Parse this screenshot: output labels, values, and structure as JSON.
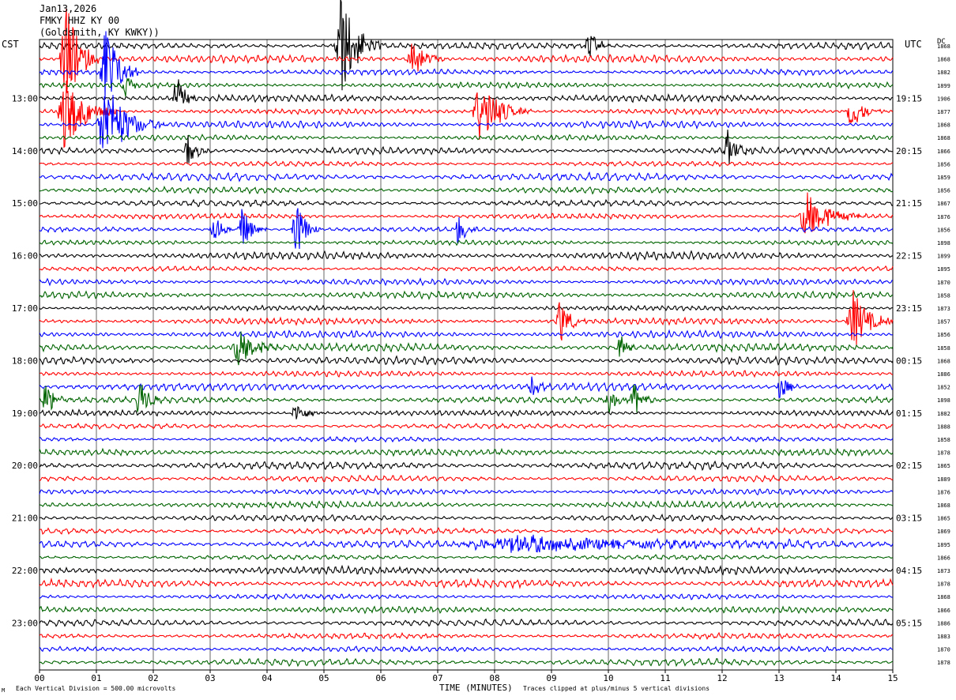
{
  "header": {
    "date": "Jan13,2026",
    "station": "FMKY HHZ KY 00",
    "location": "(Goldsmith, KY KWKY))"
  },
  "axes": {
    "left_title": "CST",
    "right_title": "UTC",
    "dc_title": "DC",
    "x_title": "TIME (MINUTES)"
  },
  "footer": {
    "scale_note": "Each Vertical Division = 500.00 microvolts",
    "clip_note": "Traces clipped at plus/minus 5 vertical divisions",
    "corner_mark": "M"
  },
  "colors": {
    "trace_cycle": [
      "#000000",
      "#ff0000",
      "#0000ff",
      "#006400"
    ],
    "grid": "#000000",
    "background": "#ffffff"
  },
  "chart_data": {
    "type": "helicorder",
    "title": "FMKY HHZ KY 00",
    "xlabel": "TIME (MINUTES)",
    "xlim": [
      0,
      15
    ],
    "x_ticks": [
      "00",
      "01",
      "02",
      "03",
      "04",
      "05",
      "06",
      "07",
      "08",
      "09",
      "10",
      "11",
      "12",
      "13",
      "14",
      "15"
    ],
    "left_hour_labels": [
      "13:00",
      "14:00",
      "15:00",
      "16:00",
      "17:00",
      "18:00",
      "19:00",
      "20:00",
      "21:00",
      "22:00",
      "23:00"
    ],
    "right_hour_labels": [
      "19:15",
      "20:15",
      "21:15",
      "22:15",
      "23:15",
      "00:15",
      "01:15",
      "02:15",
      "03:15",
      "04:15",
      "05:15"
    ],
    "minutes_per_line": 15,
    "line_count": 48,
    "grid": true,
    "dc_offsets": [
      "1868",
      "1868",
      "1882",
      "1899",
      "1906",
      "1877",
      "1868",
      "1868",
      "1866",
      "1856",
      "1859",
      "1856",
      "1867",
      "1876",
      "1856",
      "1898",
      "1899",
      "1895",
      "1870",
      "1858",
      "1873",
      "1857",
      "1856",
      "1858",
      "1868",
      "1886",
      "1852",
      "1898",
      "1882",
      "1888",
      "1858",
      "1878",
      "1865",
      "1889",
      "1876",
      "1868",
      "1865",
      "1869",
      "1895",
      "1866",
      "1873",
      "1878",
      "1868",
      "1866",
      "1886",
      "1883",
      "1870",
      "1878"
    ],
    "events": [
      {
        "line": 0,
        "minute": 5.3,
        "amplitude": 7.5,
        "width": 0.25
      },
      {
        "line": 0,
        "minute": 9.65,
        "amplitude": 2,
        "width": 0.15
      },
      {
        "line": 1,
        "minute": 0.45,
        "amplitude": 9,
        "width": 0.2
      },
      {
        "line": 1,
        "minute": 6.55,
        "amplitude": 3,
        "width": 0.2
      },
      {
        "line": 2,
        "minute": 1.15,
        "amplitude": 8,
        "width": 0.2
      },
      {
        "line": 3,
        "minute": 1.5,
        "amplitude": 2.5,
        "width": 0.1
      },
      {
        "line": 4,
        "minute": 2.4,
        "amplitude": 4,
        "width": 0.12
      },
      {
        "line": 5,
        "minute": 0.45,
        "amplitude": 6,
        "width": 0.3
      },
      {
        "line": 5,
        "minute": 7.75,
        "amplitude": 5,
        "width": 0.3
      },
      {
        "line": 5,
        "minute": 14.25,
        "amplitude": 2.5,
        "width": 0.2
      },
      {
        "line": 6,
        "minute": 1.15,
        "amplitude": 6,
        "width": 0.35
      },
      {
        "line": 8,
        "minute": 2.6,
        "amplitude": 2.5,
        "width": 0.15
      },
      {
        "line": 8,
        "minute": 12.1,
        "amplitude": 3,
        "width": 0.15
      },
      {
        "line": 13,
        "minute": 13.5,
        "amplitude": 3.5,
        "width": 0.35
      },
      {
        "line": 14,
        "minute": 3.05,
        "amplitude": 3,
        "width": 0.12
      },
      {
        "line": 14,
        "minute": 3.55,
        "amplitude": 3.5,
        "width": 0.15
      },
      {
        "line": 14,
        "minute": 4.5,
        "amplitude": 4.5,
        "width": 0.15
      },
      {
        "line": 14,
        "minute": 7.35,
        "amplitude": 2.5,
        "width": 0.12
      },
      {
        "line": 21,
        "minute": 9.15,
        "amplitude": 3.5,
        "width": 0.15
      },
      {
        "line": 21,
        "minute": 14.3,
        "amplitude": 4.5,
        "width": 0.25
      },
      {
        "line": 23,
        "minute": 3.5,
        "amplitude": 2.5,
        "width": 0.3
      },
      {
        "line": 23,
        "minute": 10.2,
        "amplitude": 2.5,
        "width": 0.12
      },
      {
        "line": 26,
        "minute": 8.65,
        "amplitude": 2,
        "width": 0.1
      },
      {
        "line": 26,
        "minute": 13.0,
        "amplitude": 2.5,
        "width": 0.12
      },
      {
        "line": 27,
        "minute": 0.1,
        "amplitude": 2.5,
        "width": 0.15
      },
      {
        "line": 27,
        "minute": 1.75,
        "amplitude": 3,
        "width": 0.15
      },
      {
        "line": 27,
        "minute": 10.0,
        "amplitude": 2.5,
        "width": 0.12
      },
      {
        "line": 27,
        "minute": 10.45,
        "amplitude": 2.5,
        "width": 0.15
      },
      {
        "line": 28,
        "minute": 4.5,
        "amplitude": 1.5,
        "width": 0.2
      },
      {
        "line": 38,
        "minute": 8.5,
        "amplitude": 1.2,
        "width": 2.5
      }
    ]
  }
}
